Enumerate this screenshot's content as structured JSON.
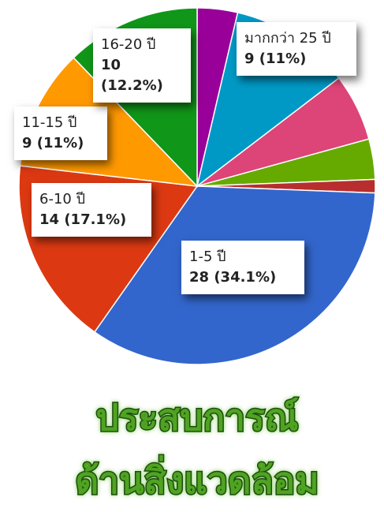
{
  "chart_data": {
    "type": "pie",
    "title": [
      "ประสบการณ์",
      "ด้านสิ่งแวดล้อม"
    ],
    "categories": [
      null,
      "มากกว่า 25 ปี",
      null,
      null,
      null,
      "1-5 ปี",
      "6-10 ปี",
      "11-15 ปี",
      "16-20 ปี"
    ],
    "values": [
      3,
      9,
      5,
      3,
      1,
      28,
      14,
      9,
      10
    ],
    "value_labels": [
      null,
      "9 (11%)",
      null,
      null,
      null,
      "28 (34.1%)",
      "14 (17.1%)",
      "9 (11%)",
      "10 (12.2%)"
    ],
    "colors": [
      "#990099",
      "#0099c6",
      "#dd4477",
      "#66aa00",
      "#b82e2e",
      "#3366cc",
      "#dc3912",
      "#ff9900",
      "#109618"
    ]
  }
}
